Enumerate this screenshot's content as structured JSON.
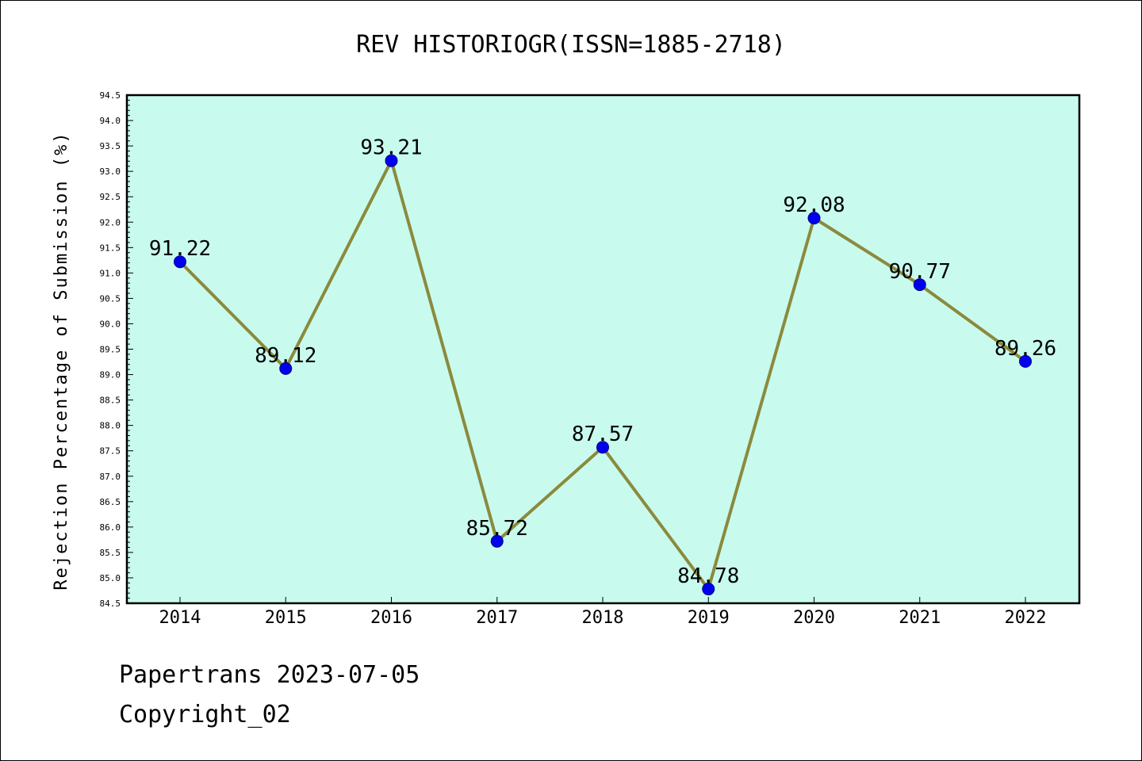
{
  "chart_data": {
    "type": "line",
    "title": "REV HISTORIOGR(ISSN=1885-2718)",
    "xlabel": "",
    "ylabel": "Rejection Percentage of Submission (%)",
    "categories": [
      "2014",
      "2015",
      "2016",
      "2017",
      "2018",
      "2019",
      "2020",
      "2021",
      "2022"
    ],
    "series": [
      {
        "values": [
          91.22,
          89.12,
          93.21,
          85.72,
          87.57,
          84.78,
          92.08,
          90.77,
          89.26
        ],
        "labels": [
          "91.22",
          "89.12",
          "93.21",
          "85.72",
          "87.57",
          "84.78",
          "92.08",
          "90.77",
          "89.26"
        ]
      }
    ],
    "ylim": [
      84.5,
      94.5
    ],
    "yticks": [
      "84.5",
      "85.0",
      "85.5",
      "86.0",
      "86.5",
      "87.0",
      "87.5",
      "88.0",
      "88.5",
      "89.0",
      "89.5",
      "90.0",
      "90.5",
      "91.0",
      "91.5",
      "92.0",
      "92.5",
      "93.0",
      "93.5",
      "94.0",
      "94.5"
    ],
    "grid": false,
    "colors": {
      "plot_background": "#c8fbee",
      "line": "#8b8a3c",
      "marker": "#0000ee"
    }
  },
  "footer": {
    "line1": "Papertrans 2023-07-05",
    "line2": "Copyright_02"
  }
}
